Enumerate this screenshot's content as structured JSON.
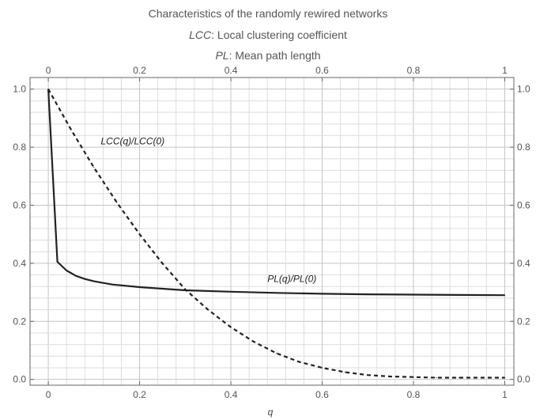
{
  "chart_data": {
    "type": "line",
    "title_lines": [
      {
        "prefix": "",
        "text": "Characteristics of the randomly rewired networks"
      },
      {
        "prefix": "LCC",
        "text": ": Local clustering coefficient"
      },
      {
        "prefix": "PL",
        "text": ": Mean path length"
      }
    ],
    "xlabel": "q",
    "ylabel": "",
    "xlim": [
      -0.04,
      1.02
    ],
    "ylim": [
      -0.02,
      1.04
    ],
    "x_ticks": [
      "0",
      "0.2",
      "0.4",
      "0.6",
      "0.8",
      "1"
    ],
    "y_ticks": [
      "0.0",
      "0.2",
      "0.4",
      "0.6",
      "0.8",
      "1.0"
    ],
    "grid": true,
    "series": [
      {
        "name": "LCC(q)/LCC(0)",
        "style": "dashed",
        "color": "#222222",
        "x": [
          0,
          0.05,
          0.1,
          0.15,
          0.2,
          0.25,
          0.3,
          0.35,
          0.4,
          0.45,
          0.5,
          0.55,
          0.6,
          0.65,
          0.7,
          0.75,
          0.8,
          0.85,
          0.9,
          0.95,
          1.0
        ],
        "y": [
          1.0,
          0.86,
          0.73,
          0.61,
          0.5,
          0.4,
          0.31,
          0.24,
          0.18,
          0.13,
          0.09,
          0.06,
          0.04,
          0.025,
          0.015,
          0.01,
          0.008,
          0.006,
          0.006,
          0.006,
          0.006
        ]
      },
      {
        "name": "PL(q)/PL(0)",
        "style": "solid",
        "color": "#222222",
        "x": [
          0,
          0.02,
          0.04,
          0.06,
          0.08,
          0.1,
          0.14,
          0.2,
          0.3,
          0.4,
          0.5,
          0.6,
          0.7,
          0.8,
          0.9,
          1.0
        ],
        "y": [
          1.0,
          0.405,
          0.375,
          0.357,
          0.346,
          0.338,
          0.327,
          0.318,
          0.307,
          0.302,
          0.298,
          0.295,
          0.293,
          0.292,
          0.291,
          0.29
        ]
      }
    ],
    "annotations": [
      {
        "text": "LCC(q)/LCC(0)",
        "x": 0.115,
        "y": 0.81
      },
      {
        "text": "PL(q)/PL(0)",
        "x": 0.48,
        "y": 0.335
      }
    ]
  }
}
